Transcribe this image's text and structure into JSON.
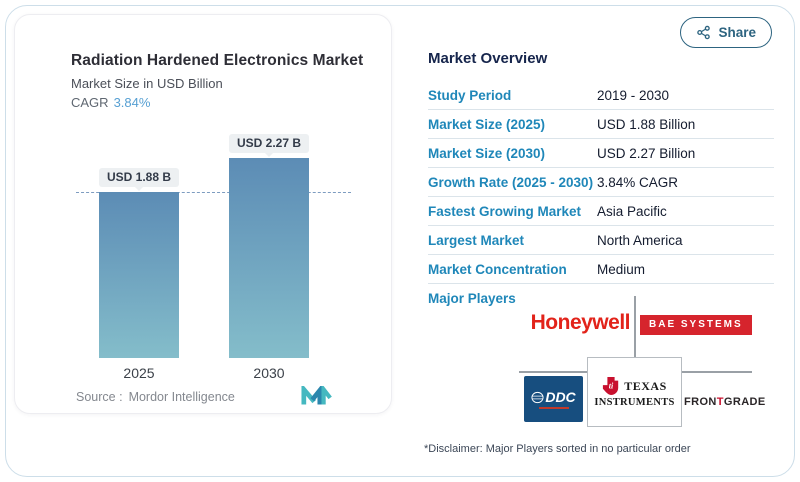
{
  "share_button": {
    "label": "Share"
  },
  "chart_card": {
    "title": "Radiation Hardened Electronics Market",
    "subtitle": "Market Size in USD Billion",
    "cagr_label": "CAGR",
    "cagr_value": "3.84%",
    "source_label": "Source :",
    "source_name": "Mordor Intelligence"
  },
  "chart_data": {
    "type": "bar",
    "title": "Radiation Hardened Electronics Market",
    "ylabel": "Market Size in USD Billion",
    "categories": [
      "2025",
      "2030"
    ],
    "values": [
      1.88,
      2.27
    ],
    "value_labels": [
      "USD 1.88 B",
      "USD 2.27 B"
    ],
    "unit": "USD Billion",
    "cagr_percent": 3.84,
    "reference_line": {
      "at_value": 1.88,
      "style": "dashed"
    },
    "bar_gradient_top": "#5c8cb5",
    "bar_gradient_bottom": "#84bdca"
  },
  "overview": {
    "title": "Market Overview",
    "rows": [
      {
        "label": "Study Period",
        "value": "2019 - 2030"
      },
      {
        "label": "Market Size (2025)",
        "value": "USD 1.88 Billion"
      },
      {
        "label": "Market Size (2030)",
        "value": "USD 2.27 Billion"
      },
      {
        "label": "Growth Rate (2025 - 2030)",
        "value": "3.84% CAGR"
      },
      {
        "label": "Fastest Growing Market",
        "value": "Asia Pacific"
      },
      {
        "label": "Largest Market",
        "value": "North America"
      },
      {
        "label": "Market Concentration",
        "value": "Medium"
      }
    ],
    "major_players_label": "Major Players",
    "disclaimer": "*Disclaimer: Major Players sorted in no particular order"
  },
  "players": {
    "honeywell": "Honeywell",
    "bae": "BAE SYSTEMS",
    "ddc": "DDC",
    "ti_line1": "TEXAS",
    "ti_line2": "INSTRUMENTS",
    "ti_bug": "ti",
    "frontgrade_pre": "FRON",
    "frontgrade_t": "T",
    "frontgrade_post": "GRADE"
  },
  "colors": {
    "accent_blue": "#1f87b9",
    "header_navy": "#16254c",
    "cagr_blue": "#57a0d3",
    "honeywell_red": "#e2231a",
    "bae_red": "#d6242d",
    "ddc_navy": "#174e7f",
    "ti_red": "#c8102e",
    "frame_border": "#cddee9",
    "connector_gray": "#9aa0a6"
  }
}
